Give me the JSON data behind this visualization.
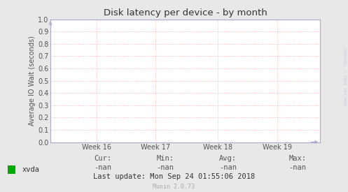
{
  "title": "Disk latency per device - by month",
  "ylabel": "Average IO Wait (seconds)",
  "ylim": [
    0.0,
    1.0
  ],
  "yticks": [
    0.0,
    0.1,
    0.2,
    0.3,
    0.4,
    0.5,
    0.6,
    0.7,
    0.8,
    0.9,
    1.0
  ],
  "xtick_labels": [
    "Week 16",
    "Week 17",
    "Week 18",
    "Week 19"
  ],
  "bg_color": "#e8e8e8",
  "plot_bg_color": "#ffffff",
  "grid_color": "#ffaaaa",
  "title_color": "#333333",
  "axis_color": "#aaaacc",
  "legend_label": "xvda",
  "legend_color": "#00aa00",
  "cur_label": "Cur:",
  "cur_value": "-nan",
  "min_label": "Min:",
  "min_value": "-nan",
  "avg_label": "Avg:",
  "avg_value": "-nan",
  "max_label": "Max:",
  "max_value": "-nan",
  "last_update": "Last update: Mon Sep 24 01:55:06 2018",
  "munin_version": "Munin 2.0.73",
  "watermark": "RRDTOOL / TOBI OETIKER",
  "font_color": "#333333",
  "label_color": "#555555",
  "stats_color": "#555555"
}
